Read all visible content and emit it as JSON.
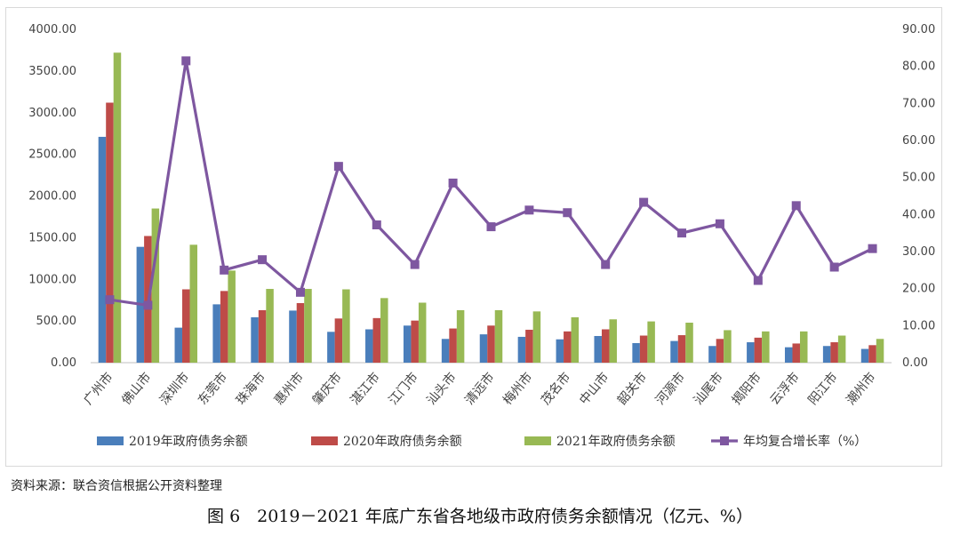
{
  "chart_data": {
    "type": "bar",
    "categories": [
      "广州市",
      "佛山市",
      "深圳市",
      "东莞市",
      "珠海市",
      "惠州市",
      "肇庆市",
      "湛江市",
      "江门市",
      "汕头市",
      "清远市",
      "梅州市",
      "茂名市",
      "中山市",
      "韶关市",
      "河源市",
      "汕尾市",
      "揭阳市",
      "云浮市",
      "阳江市",
      "潮州市"
    ],
    "series": [
      {
        "name": "2019年政府债务余额",
        "axis": "left",
        "type": "bar",
        "color": "#4a7ebb",
        "values": [
          2710,
          1390,
          420,
          700,
          545,
          625,
          370,
          400,
          445,
          285,
          340,
          310,
          280,
          320,
          235,
          260,
          200,
          245,
          185,
          200,
          165
        ]
      },
      {
        "name": "2020年政府债务余额",
        "axis": "left",
        "type": "bar",
        "color": "#be4b48",
        "values": [
          3120,
          1520,
          880,
          860,
          630,
          715,
          530,
          535,
          505,
          410,
          445,
          395,
          375,
          400,
          325,
          330,
          285,
          300,
          230,
          245,
          210
        ]
      },
      {
        "name": "2021年政府债务余额",
        "axis": "left",
        "type": "bar",
        "color": "#98b954",
        "values": [
          3720,
          1850,
          1415,
          1105,
          885,
          885,
          880,
          775,
          720,
          630,
          630,
          615,
          545,
          520,
          495,
          480,
          390,
          375,
          375,
          325,
          285
        ]
      },
      {
        "name": "年均复合增长率（%）",
        "axis": "right",
        "type": "line",
        "color": "#7e57a0",
        "values": [
          17.0,
          15.5,
          81.5,
          25.0,
          27.8,
          19.0,
          53.0,
          37.2,
          26.5,
          48.5,
          36.7,
          41.2,
          40.5,
          26.5,
          43.3,
          35.0,
          37.5,
          22.2,
          42.4,
          25.8,
          30.8
        ]
      }
    ],
    "ylim": [
      0,
      4000
    ],
    "y_ticks": [
      "0.00",
      "500.00",
      "1000.00",
      "1500.00",
      "2000.00",
      "2500.00",
      "3000.00",
      "3500.00",
      "4000.00"
    ],
    "y2lim": [
      0,
      90
    ],
    "y2_ticks": [
      "0.00",
      "10.00",
      "20.00",
      "30.00",
      "40.00",
      "50.00",
      "60.00",
      "70.00",
      "80.00",
      "90.00"
    ],
    "legend_position": "bottom",
    "grid": false
  },
  "source_note": "资料来源：联合资信根据公开资料整理",
  "caption": "图 6　2019－2021 年底广东省各地级市政府债务余额情况（亿元、%）"
}
